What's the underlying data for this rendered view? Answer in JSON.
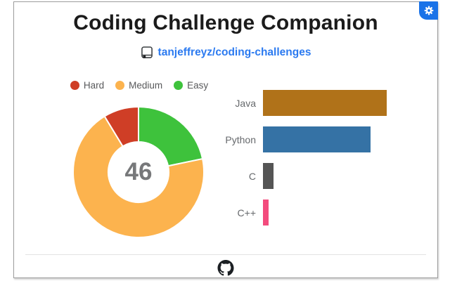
{
  "popup": {
    "background": "#ffffff",
    "border_color": "#9c9c9c"
  },
  "header": {
    "title": "Coding Challenge Companion",
    "repo": {
      "label": "tanjeffreyz/coding-challenges",
      "color": "#2b7af0"
    },
    "settings_button": {
      "color": "#1a73e8"
    }
  },
  "chart_data": [
    {
      "type": "pie",
      "variant": "doughnut",
      "title": "Challenges by difficulty",
      "categories": [
        "Hard",
        "Medium",
        "Easy"
      ],
      "values": [
        4,
        32,
        10
      ],
      "colors": [
        "#cf3e26",
        "#fcb34e",
        "#3ec23c"
      ],
      "total": 46,
      "total_label": "46",
      "legend_position": "top",
      "cutout_ratio": 0.45,
      "start": "Easy segment begins at 12 o'clock, drawn clockwise Easy, Medium, Hard"
    },
    {
      "type": "bar",
      "orientation": "horizontal",
      "title": "Challenges by language",
      "categories": [
        "Java",
        "Python",
        "C",
        "C++"
      ],
      "values": [
        23,
        20,
        2,
        1
      ],
      "colors": [
        "#b07219",
        "#3572a5",
        "#555555",
        "#f34b7d"
      ],
      "xlim": [
        0,
        23
      ],
      "grid": false,
      "axis_labels_visible": false
    }
  ],
  "footer": {
    "logo": "github"
  }
}
